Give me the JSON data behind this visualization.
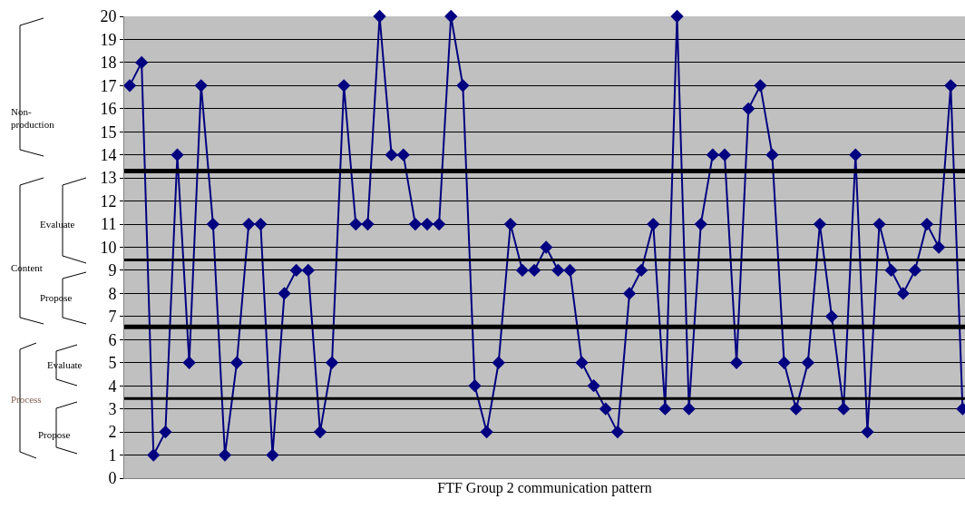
{
  "chart_data": {
    "type": "line",
    "xlabel": "FTF Group 2 communication pattern",
    "categories": [
      null,
      null,
      null,
      null,
      null,
      null,
      null,
      null,
      null,
      null,
      null,
      null,
      null,
      null,
      null,
      null,
      null,
      null,
      null,
      null,
      null,
      null,
      null,
      null,
      null,
      null,
      null,
      null,
      null,
      null,
      null,
      null,
      null,
      null,
      null,
      null,
      null,
      null,
      null,
      null,
      null,
      null,
      null,
      null,
      null,
      null,
      null,
      null,
      null,
      null,
      null,
      null,
      null,
      null,
      null,
      null,
      null,
      null,
      null,
      null,
      null,
      null,
      null,
      null,
      null,
      null,
      null,
      null,
      null,
      null,
      null
    ],
    "series": [
      {
        "color": "#000080",
        "values": [
          17,
          18,
          1,
          2,
          14,
          5,
          17,
          11,
          1,
          5,
          11,
          11,
          1,
          8,
          9,
          9,
          2,
          5,
          17,
          11,
          11,
          20,
          14,
          14,
          11,
          11,
          11,
          20,
          17,
          4,
          2,
          5,
          11,
          9,
          9,
          10,
          9,
          9,
          5,
          4,
          3,
          2,
          8,
          9,
          11,
          3,
          20,
          3,
          11,
          14,
          14,
          5,
          16,
          17,
          14,
          5,
          3,
          5,
          11,
          7,
          3,
          14,
          2,
          11,
          9,
          8,
          9,
          11,
          10,
          17,
          3
        ]
      }
    ],
    "ylim": [
      0,
      20
    ],
    "yticks": [
      0,
      1,
      2,
      3,
      4,
      5,
      6,
      7,
      8,
      9,
      10,
      11,
      12,
      13,
      14,
      15,
      16,
      17,
      18,
      19,
      20
    ],
    "grid": "y",
    "marker": "diamond",
    "line_style": "solid",
    "legend": false,
    "ref_lines": [
      {
        "axis": "y",
        "value": 13.3,
        "color": "#000000"
      },
      {
        "axis": "y",
        "value": 9.45,
        "color": "#000000"
      },
      {
        "axis": "y",
        "value": 6.55,
        "color": "#000000"
      },
      {
        "axis": "y",
        "value": 3.45,
        "color": "#000000"
      }
    ],
    "annotations": [
      "Non-production",
      "Content",
      "Evaluate",
      "Propose",
      "Process",
      "Evaluate",
      "Propose"
    ]
  }
}
